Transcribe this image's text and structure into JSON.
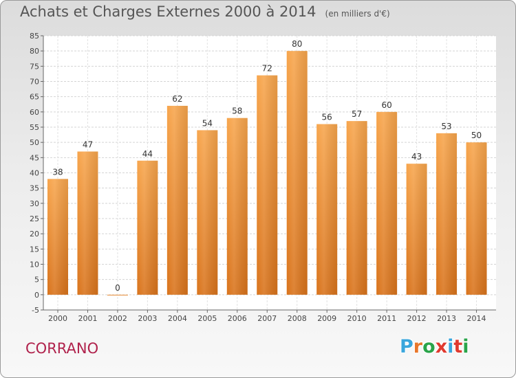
{
  "chart_data": {
    "type": "bar",
    "title": "Achats et Charges Externes 2000 à 2014",
    "subtitle": "(en milliers d'€)",
    "categories": [
      "2000",
      "2001",
      "2002",
      "2003",
      "2004",
      "2005",
      "2006",
      "2007",
      "2008",
      "2009",
      "2010",
      "2011",
      "2012",
      "2013",
      "2014"
    ],
    "values": [
      38,
      47,
      0,
      44,
      62,
      54,
      58,
      72,
      80,
      56,
      57,
      60,
      43,
      53,
      50
    ],
    "ylim": [
      -5,
      85
    ],
    "yticks": [
      -5,
      0,
      5,
      10,
      15,
      20,
      25,
      30,
      35,
      40,
      45,
      50,
      55,
      60,
      65,
      70,
      75,
      80,
      85
    ],
    "grid": true,
    "bar_color": "#f29a3a"
  },
  "footer": {
    "commune": "CORRANO",
    "logo_text": "Proxiti",
    "logo_colors": [
      "#3aa6dc",
      "#e8772b",
      "#2aa44a",
      "#e03a2f",
      "#3aa6dc",
      "#e03a2f",
      "#2aa44a"
    ]
  }
}
